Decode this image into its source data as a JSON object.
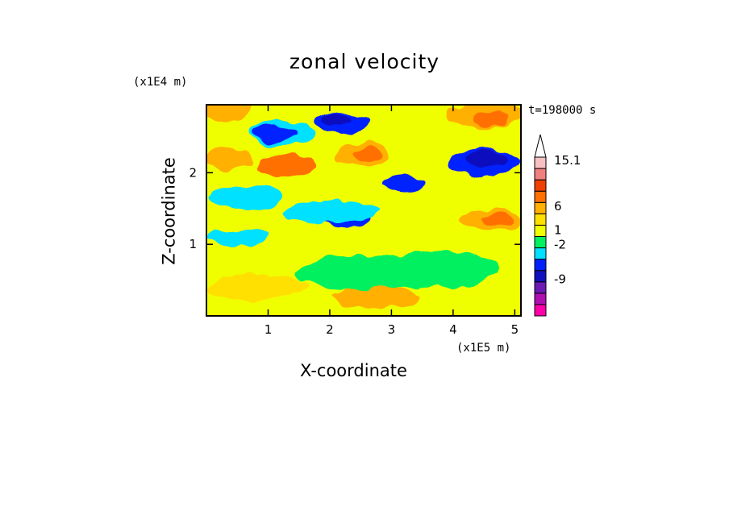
{
  "chart_data": {
    "type": "heatmap",
    "title": "zonal velocity",
    "xlabel": "X-coordinate",
    "ylabel": "Z-coordinate",
    "x_unit": "(x1E5 m)",
    "y_unit": "(x1E4 m)",
    "time_label": "t=198000 s",
    "xlim": [
      0,
      5.1
    ],
    "ylim": [
      0,
      2.95
    ],
    "x_ticks": [
      "1",
      "2",
      "3",
      "4",
      "5"
    ],
    "y_ticks": [
      "1",
      "2"
    ],
    "colorbar": {
      "tick_labels": [
        "15.1",
        "6",
        "1",
        "-2",
        "-9"
      ],
      "colors": [
        "#ff00a8",
        "#b010b0",
        "#6c1ab4",
        "#1010c0",
        "#0020ff",
        "#00e0ff",
        "#00f060",
        "#f0ff00",
        "#ffe000",
        "#ffb000",
        "#ff7000",
        "#f04000",
        "#f08080",
        "#f8c0c0",
        "#ffffff"
      ]
    },
    "field_patches": [
      {
        "x": 0.3,
        "z": 2.9,
        "rx": 0.45,
        "rz": 0.2,
        "color": "#ffb000"
      },
      {
        "x": 0.35,
        "z": 2.2,
        "rx": 0.4,
        "rz": 0.15,
        "color": "#ffb000"
      },
      {
        "x": 1.2,
        "z": 2.55,
        "rx": 0.55,
        "rz": 0.18,
        "color": "#00e0ff"
      },
      {
        "x": 1.1,
        "z": 2.55,
        "rx": 0.38,
        "rz": 0.12,
        "color": "#0020ff"
      },
      {
        "x": 2.2,
        "z": 2.7,
        "rx": 0.45,
        "rz": 0.15,
        "color": "#0020ff"
      },
      {
        "x": 2.1,
        "z": 2.75,
        "rx": 0.25,
        "rz": 0.08,
        "color": "#1010c0"
      },
      {
        "x": 1.3,
        "z": 2.1,
        "rx": 0.5,
        "rz": 0.14,
        "color": "#ff7000"
      },
      {
        "x": 2.55,
        "z": 2.25,
        "rx": 0.45,
        "rz": 0.17,
        "color": "#ffb000"
      },
      {
        "x": 2.6,
        "z": 2.25,
        "rx": 0.25,
        "rz": 0.1,
        "color": "#ff7000"
      },
      {
        "x": 3.2,
        "z": 1.85,
        "rx": 0.35,
        "rz": 0.1,
        "color": "#0020ff"
      },
      {
        "x": 2.3,
        "z": 1.35,
        "rx": 0.4,
        "rz": 0.12,
        "color": "#0020ff"
      },
      {
        "x": 2.05,
        "z": 1.45,
        "rx": 0.8,
        "rz": 0.15,
        "color": "#00e0ff"
      },
      {
        "x": 4.5,
        "z": 2.15,
        "rx": 0.6,
        "rz": 0.2,
        "color": "#0020ff"
      },
      {
        "x": 4.55,
        "z": 2.2,
        "rx": 0.35,
        "rz": 0.12,
        "color": "#1010c0"
      },
      {
        "x": 4.5,
        "z": 2.8,
        "rx": 0.6,
        "rz": 0.17,
        "color": "#ffb000"
      },
      {
        "x": 4.6,
        "z": 2.75,
        "rx": 0.3,
        "rz": 0.09,
        "color": "#ff7000"
      },
      {
        "x": 4.6,
        "z": 1.35,
        "rx": 0.5,
        "rz": 0.15,
        "color": "#ffb000"
      },
      {
        "x": 4.7,
        "z": 1.35,
        "rx": 0.25,
        "rz": 0.08,
        "color": "#ff7000"
      },
      {
        "x": 0.6,
        "z": 1.65,
        "rx": 0.6,
        "rz": 0.15,
        "color": "#00e0ff"
      },
      {
        "x": 0.5,
        "z": 1.1,
        "rx": 0.5,
        "rz": 0.12,
        "color": "#00e0ff"
      },
      {
        "x": 2.6,
        "z": 0.6,
        "rx": 1.2,
        "rz": 0.25,
        "color": "#00f060"
      },
      {
        "x": 3.8,
        "z": 0.65,
        "rx": 0.9,
        "rz": 0.25,
        "color": "#00f060"
      },
      {
        "x": 2.7,
        "z": 0.25,
        "rx": 0.7,
        "rz": 0.15,
        "color": "#ffb000"
      },
      {
        "x": 0.8,
        "z": 0.4,
        "rx": 0.8,
        "rz": 0.18,
        "color": "#ffe000"
      }
    ]
  }
}
